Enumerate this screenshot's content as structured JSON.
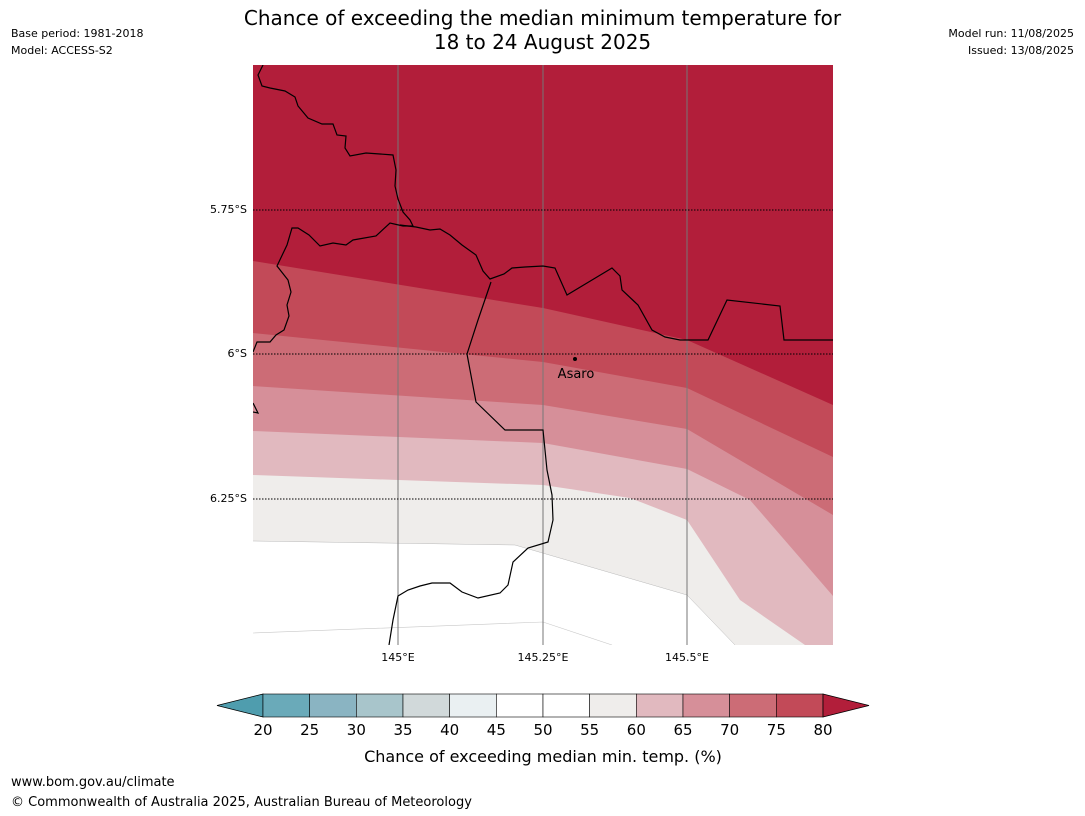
{
  "title": {
    "line1": "Chance of exceeding the median minimum temperature for",
    "line2": "18 to 24 August 2025"
  },
  "meta": {
    "base_period": "Base period: 1981-2018",
    "model": "Model: ACCESS-S2",
    "model_run": "Model run: 11/08/2025",
    "issued": "Issued: 13/08/2025"
  },
  "map": {
    "lat_labels": [
      "5.75°S",
      "6°S",
      "6.25°S"
    ],
    "lon_labels": [
      "145°E",
      "145.25°E",
      "145.5°E"
    ],
    "place_label": "Asaro"
  },
  "colorbar": {
    "ticks": [
      "20",
      "25",
      "30",
      "35",
      "40",
      "45",
      "50",
      "55",
      "60",
      "65",
      "70",
      "75",
      "80"
    ],
    "colors": [
      "#6aaab9",
      "#8ab4c2",
      "#a8c5cb",
      "#d1d9da",
      "#eaf0f2",
      "#ffffff",
      "#ffffff",
      "#efedeb",
      "#e1b9bf",
      "#d68f99",
      "#cc6c76",
      "#c24a58",
      "#b21e3a"
    ],
    "under_color": "#4f9dae",
    "over_color": "#b21e3a",
    "label": "Chance of exceeding median min. temp. (%)"
  },
  "footer": {
    "url": "www.bom.gov.au/climate",
    "copyright": "© Commonwealth of Australia 2025, Australian Bureau of Meteorology"
  }
}
